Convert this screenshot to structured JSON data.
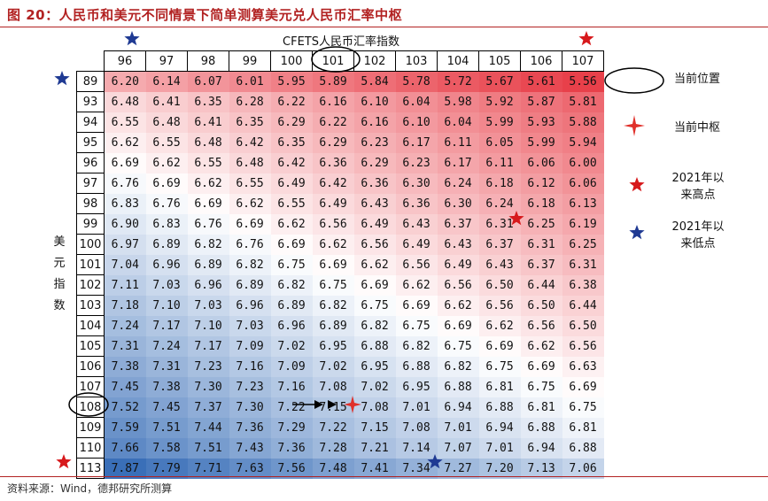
{
  "title": "图 20：人民币和美元不同情景下简单测算美元兑人民币汇率中枢",
  "footer": "资料来源：Wind，德邦研究所测算",
  "chart_data": {
    "type": "table",
    "x_axis_label": "CFETS人民币汇率指数",
    "y_axis_label": "美元指数",
    "columns": [
      96,
      97,
      98,
      99,
      100,
      101,
      102,
      103,
      104,
      105,
      106,
      107
    ],
    "rows": [
      {
        "label": 89,
        "values": [
          6.2,
          6.14,
          6.07,
          6.01,
          5.95,
          5.89,
          5.84,
          5.78,
          5.72,
          5.67,
          5.61,
          5.56
        ]
      },
      {
        "label": 93,
        "values": [
          6.48,
          6.41,
          6.35,
          6.28,
          6.22,
          6.16,
          6.1,
          6.04,
          5.98,
          5.92,
          5.87,
          5.81
        ]
      },
      {
        "label": 94,
        "values": [
          6.55,
          6.48,
          6.41,
          6.35,
          6.29,
          6.22,
          6.16,
          6.1,
          6.04,
          5.99,
          5.93,
          5.88
        ]
      },
      {
        "label": 95,
        "values": [
          6.62,
          6.55,
          6.48,
          6.42,
          6.35,
          6.29,
          6.23,
          6.17,
          6.11,
          6.05,
          5.99,
          5.94
        ]
      },
      {
        "label": 96,
        "values": [
          6.69,
          6.62,
          6.55,
          6.48,
          6.42,
          6.36,
          6.29,
          6.23,
          6.17,
          6.11,
          6.06,
          6.0
        ]
      },
      {
        "label": 97,
        "values": [
          6.76,
          6.69,
          6.62,
          6.55,
          6.49,
          6.42,
          6.36,
          6.3,
          6.24,
          6.18,
          6.12,
          6.06
        ]
      },
      {
        "label": 98,
        "values": [
          6.83,
          6.76,
          6.69,
          6.62,
          6.55,
          6.49,
          6.43,
          6.36,
          6.3,
          6.24,
          6.18,
          6.13
        ]
      },
      {
        "label": 99,
        "values": [
          6.9,
          6.83,
          6.76,
          6.69,
          6.62,
          6.56,
          6.49,
          6.43,
          6.37,
          6.31,
          6.25,
          6.19
        ]
      },
      {
        "label": 100,
        "values": [
          6.97,
          6.89,
          6.82,
          6.76,
          6.69,
          6.62,
          6.56,
          6.49,
          6.43,
          6.37,
          6.31,
          6.25
        ]
      },
      {
        "label": 101,
        "values": [
          7.04,
          6.96,
          6.89,
          6.82,
          6.75,
          6.69,
          6.62,
          6.56,
          6.49,
          6.43,
          6.37,
          6.31
        ]
      },
      {
        "label": 102,
        "values": [
          7.11,
          7.03,
          6.96,
          6.89,
          6.82,
          6.75,
          6.69,
          6.62,
          6.56,
          6.5,
          6.44,
          6.38
        ]
      },
      {
        "label": 103,
        "values": [
          7.18,
          7.1,
          7.03,
          6.96,
          6.89,
          6.82,
          6.75,
          6.69,
          6.62,
          6.56,
          6.5,
          6.44
        ]
      },
      {
        "label": 104,
        "values": [
          7.24,
          7.17,
          7.1,
          7.03,
          6.96,
          6.89,
          6.82,
          6.75,
          6.69,
          6.62,
          6.56,
          6.5
        ]
      },
      {
        "label": 105,
        "values": [
          7.31,
          7.24,
          7.17,
          7.09,
          7.02,
          6.95,
          6.88,
          6.82,
          6.75,
          6.69,
          6.62,
          6.56
        ]
      },
      {
        "label": 106,
        "values": [
          7.38,
          7.31,
          7.23,
          7.16,
          7.09,
          7.02,
          6.95,
          6.88,
          6.82,
          6.75,
          6.69,
          6.63
        ]
      },
      {
        "label": 107,
        "values": [
          7.45,
          7.38,
          7.3,
          7.23,
          7.16,
          7.08,
          7.02,
          6.95,
          6.88,
          6.81,
          6.75,
          6.69
        ]
      },
      {
        "label": 108,
        "values": [
          7.52,
          7.45,
          7.37,
          7.3,
          7.22,
          7.15,
          7.08,
          7.01,
          6.94,
          6.88,
          6.81,
          6.75
        ]
      },
      {
        "label": 109,
        "values": [
          7.59,
          7.51,
          7.44,
          7.36,
          7.29,
          7.22,
          7.15,
          7.08,
          7.01,
          6.94,
          6.88,
          6.81
        ]
      },
      {
        "label": 110,
        "values": [
          7.66,
          7.58,
          7.51,
          7.43,
          7.36,
          7.28,
          7.21,
          7.14,
          7.07,
          7.01,
          6.94,
          6.88
        ]
      },
      {
        "label": 113,
        "values": [
          7.87,
          7.79,
          7.71,
          7.63,
          7.56,
          7.48,
          7.41,
          7.34,
          7.27,
          7.2,
          7.13,
          7.06
        ]
      }
    ],
    "current_position": {
      "cfets": 101,
      "usd_index": 108
    },
    "current_central": {
      "cfets": 101,
      "usd_index": 108
    },
    "highs_since_2021": [
      {
        "cfets": 107
      },
      {
        "usd_index": 99,
        "cfets": 105
      }
    ],
    "lows_since_2021": [
      {
        "cfets": 96
      },
      {
        "usd_index": 89
      },
      {
        "usd_index": 113,
        "cfets": 103
      }
    ],
    "color_scale": {
      "low": "#e8404a",
      "mid": "#ffffff",
      "high": "#3a6fb8"
    }
  },
  "legend": {
    "current_position": "当前位置",
    "current_central": "当前中枢",
    "high_since_2021": "2021年以\n来高点",
    "low_since_2021": "2021年以\n来低点"
  },
  "colors": {
    "title": "#b22222",
    "red_star": "#d7191c",
    "blue_star": "#1f3a93",
    "marker": "#e0302a"
  }
}
